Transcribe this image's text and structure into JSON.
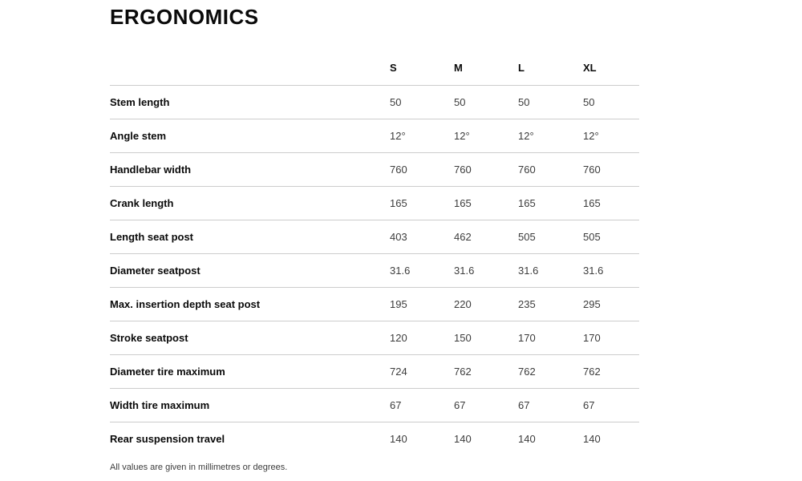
{
  "page": {
    "title": "ERGONOMICS",
    "footnote": "All values are given in millimetres or degrees."
  },
  "table": {
    "columns": [
      "S",
      "M",
      "L",
      "XL"
    ],
    "rows": [
      {
        "label": "Stem length",
        "values": [
          "50",
          "50",
          "50",
          "50"
        ]
      },
      {
        "label": "Angle stem",
        "values": [
          "12°",
          "12°",
          "12°",
          "12°"
        ]
      },
      {
        "label": "Handlebar width",
        "values": [
          "760",
          "760",
          "760",
          "760"
        ]
      },
      {
        "label": "Crank length",
        "values": [
          "165",
          "165",
          "165",
          "165"
        ]
      },
      {
        "label": "Length seat post",
        "values": [
          "403",
          "462",
          "505",
          "505"
        ]
      },
      {
        "label": "Diameter seatpost",
        "values": [
          "31.6",
          "31.6",
          "31.6",
          "31.6"
        ]
      },
      {
        "label": "Max. insertion depth seat post",
        "values": [
          "195",
          "220",
          "235",
          "295"
        ]
      },
      {
        "label": "Stroke seatpost",
        "values": [
          "120",
          "150",
          "170",
          "170"
        ]
      },
      {
        "label": "Diameter tire maximum",
        "values": [
          "724",
          "762",
          "762",
          "762"
        ]
      },
      {
        "label": "Width tire maximum",
        "values": [
          "67",
          "67",
          "67",
          "67"
        ]
      },
      {
        "label": "Rear suspension travel",
        "values": [
          "140",
          "140",
          "140",
          "140"
        ]
      }
    ],
    "colors": {
      "heading_text": "#0a0a0a",
      "value_text": "#3c3c3c",
      "divider": "#cccccc"
    }
  }
}
